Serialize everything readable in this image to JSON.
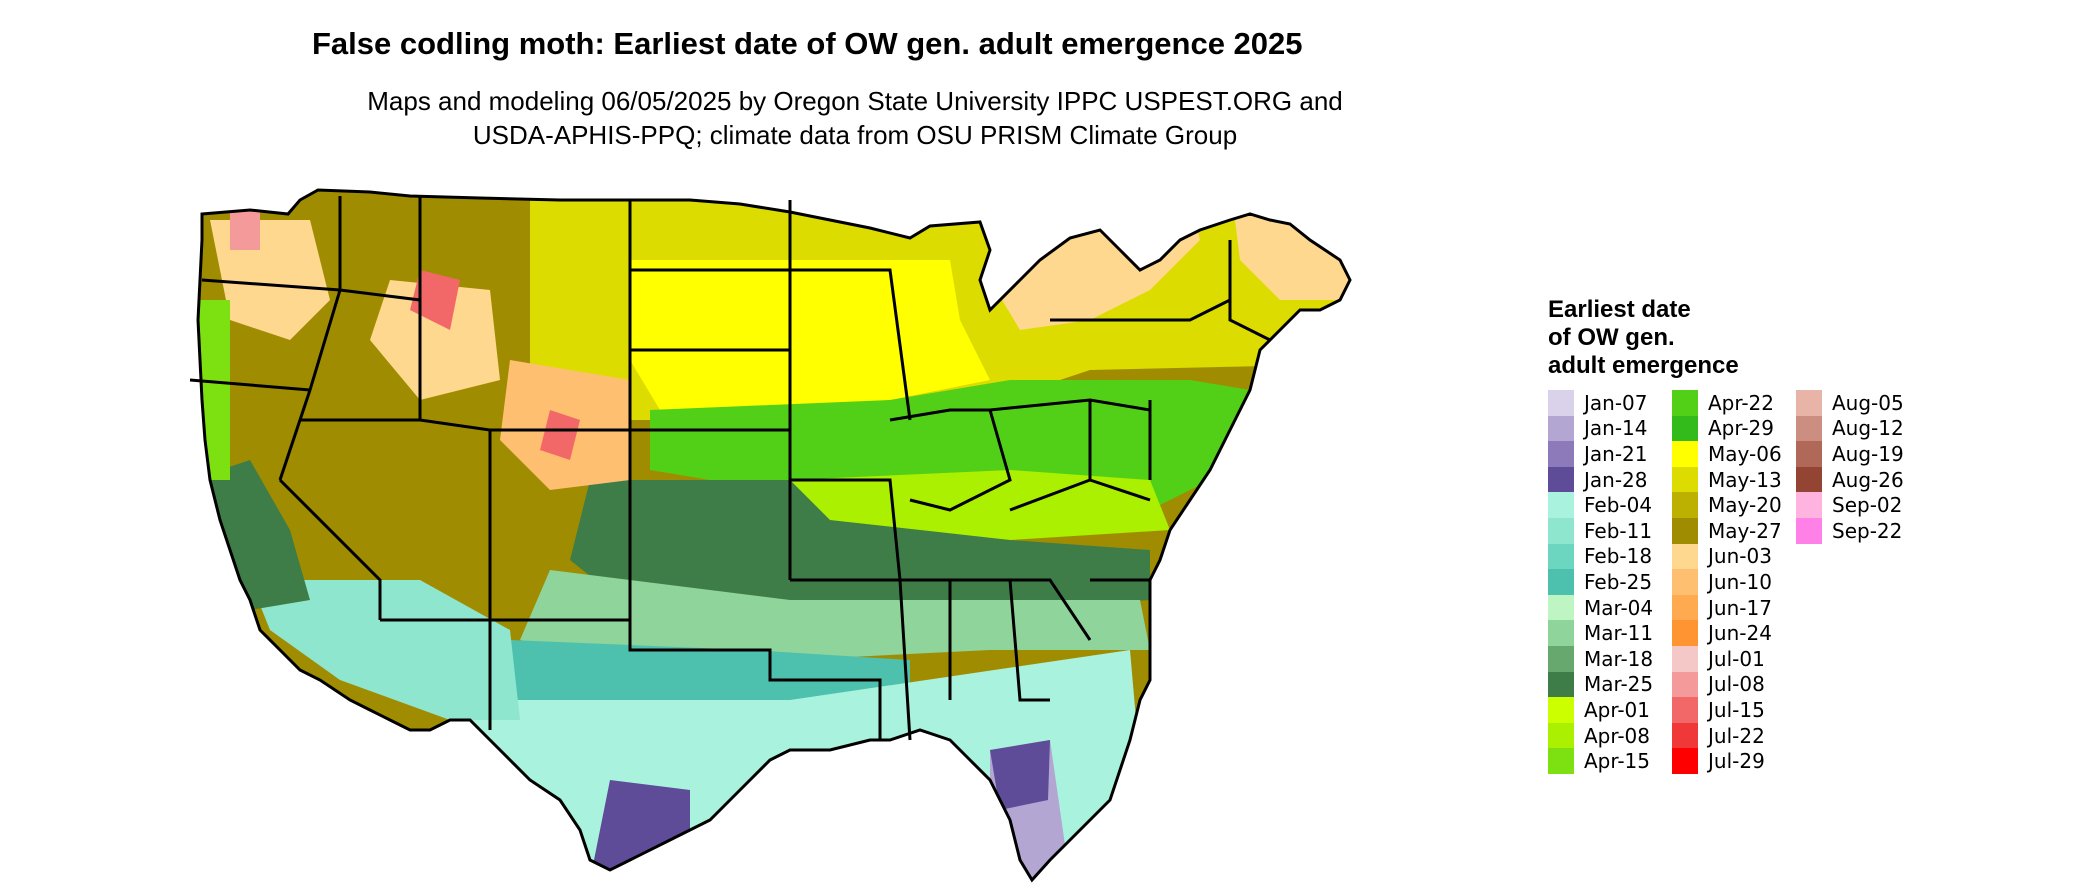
{
  "title": "False codling moth: Earliest date of OW gen. adult emergence 2025",
  "subtitle_line1": "Maps and modeling 06/05/2025 by Oregon State University IPPC USPEST.ORG and",
  "subtitle_line2": "USDA-APHIS-PPQ; climate data from OSU PRISM Climate Group",
  "legend": {
    "title_line1": "Earliest date",
    "title_line2": "of OW gen.",
    "title_line3": "adult emergence",
    "columns": [
      [
        {
          "label": "Jan-07",
          "color": "#d9d2ea"
        },
        {
          "label": "Jan-14",
          "color": "#b3a6d2"
        },
        {
          "label": "Jan-21",
          "color": "#8c7abb"
        },
        {
          "label": "Jan-28",
          "color": "#5e4c99"
        },
        {
          "label": "Feb-04",
          "color": "#a8f2de"
        },
        {
          "label": "Feb-11",
          "color": "#8fe6cf"
        },
        {
          "label": "Feb-18",
          "color": "#6dd6c0"
        },
        {
          "label": "Feb-25",
          "color": "#4dc0ae"
        },
        {
          "label": "Mar-04",
          "color": "#bff5c2"
        },
        {
          "label": "Mar-11",
          "color": "#8fd49a"
        },
        {
          "label": "Mar-18",
          "color": "#66a86e"
        },
        {
          "label": "Mar-25",
          "color": "#3e7d47"
        },
        {
          "label": "Apr-01",
          "color": "#ccff00"
        },
        {
          "label": "Apr-08",
          "color": "#aaf000"
        },
        {
          "label": "Apr-15",
          "color": "#7de010"
        }
      ],
      [
        {
          "label": "Apr-22",
          "color": "#52d018"
        },
        {
          "label": "Apr-29",
          "color": "#33bb1c"
        },
        {
          "label": "May-06",
          "color": "#ffff00"
        },
        {
          "label": "May-13",
          "color": "#dcdc00"
        },
        {
          "label": "May-20",
          "color": "#bcb000"
        },
        {
          "label": "May-27",
          "color": "#a08c00"
        },
        {
          "label": "Jun-03",
          "color": "#ffd890"
        },
        {
          "label": "Jun-10",
          "color": "#ffbf70"
        },
        {
          "label": "Jun-17",
          "color": "#ffaa50"
        },
        {
          "label": "Jun-24",
          "color": "#ff9433"
        },
        {
          "label": "Jul-01",
          "color": "#f5c8c8"
        },
        {
          "label": "Jul-08",
          "color": "#f59a9a"
        },
        {
          "label": "Jul-15",
          "color": "#f26868"
        },
        {
          "label": "Jul-22",
          "color": "#f03838"
        },
        {
          "label": "Jul-29",
          "color": "#ff0000"
        }
      ],
      [
        {
          "label": "Aug-05",
          "color": "#e8b4a8"
        },
        {
          "label": "Aug-12",
          "color": "#cc8e80"
        },
        {
          "label": "Aug-19",
          "color": "#b06858"
        },
        {
          "label": "Aug-26",
          "color": "#944432"
        },
        {
          "label": "Sep-02",
          "color": "#ffb4e0"
        },
        {
          "label": "Sep-22",
          "color": "#ff80e6"
        }
      ]
    ]
  },
  "map": {
    "zones": [
      {
        "name": "southeast-coast-jan",
        "color": "#b3a6d2"
      },
      {
        "name": "south-texas-jan",
        "color": "#5e4c99"
      },
      {
        "name": "gulf-feb",
        "color": "#a8f2de"
      },
      {
        "name": "texas-feb",
        "color": "#4dc0ae"
      },
      {
        "name": "southern-mar",
        "color": "#8fd49a"
      },
      {
        "name": "mid-south-mar",
        "color": "#3e7d47"
      },
      {
        "name": "central-apr",
        "color": "#52d018"
      },
      {
        "name": "ohio-valley-apr",
        "color": "#aaf000"
      },
      {
        "name": "plains-may",
        "color": "#ffff00"
      },
      {
        "name": "north-may",
        "color": "#dcdc00"
      },
      {
        "name": "mountain-may",
        "color": "#a08c00"
      },
      {
        "name": "high-elev-jun",
        "color": "#ffd890"
      },
      {
        "name": "alpine-jul",
        "color": "#f26868"
      }
    ]
  }
}
